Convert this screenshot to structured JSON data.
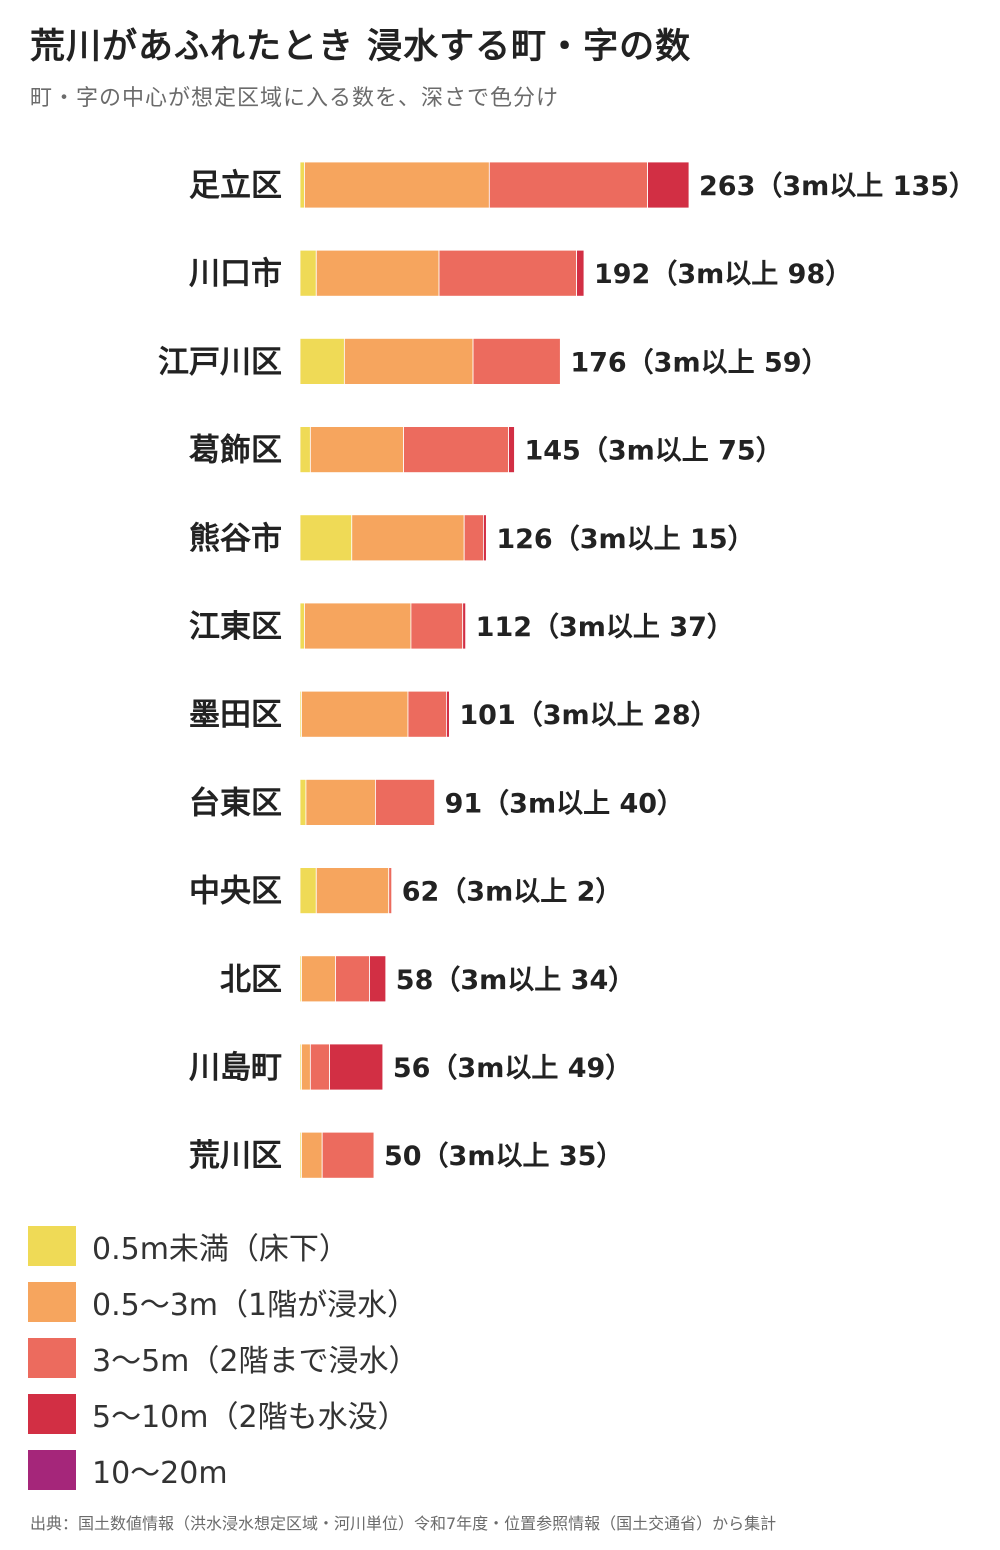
{
  "title": "荒川があふれたとき 浸水する町・字の数",
  "subtitle": "町・字の中心が想定区域に入る数を、深さで色分け",
  "source": "出典：国土数値情報（洪水浸水想定区域・河川単位）令和7年度・位置参照情報（国土交通省）から集計",
  "chart_data": {
    "type": "bar",
    "orientation": "horizontal",
    "stacked": true,
    "categories": [
      "足立区",
      "川口市",
      "江戸川区",
      "葛飾区",
      "熊谷市",
      "江東区",
      "墨田区",
      "台東区",
      "中央区",
      "北区",
      "川島町",
      "荒川区"
    ],
    "totals": [
      263,
      192,
      176,
      145,
      126,
      112,
      101,
      91,
      62,
      58,
      56,
      50
    ],
    "total_labels": [
      "263（3m以上 135）",
      "192（3m以上 98）",
      "176（3m以上 59）",
      "145（3m以上 75）",
      "126（3m以上 15）",
      "112（3m以上 37）",
      "101（3m以上 28）",
      "91（3m以上 40）",
      "62（3m以上 2）",
      "58（3m以上 34）",
      "56（3m以上 49）",
      "50（3m以上 35）"
    ],
    "series": [
      {
        "name": "0.5m未満（床下）",
        "color": "#EFDA56",
        "values": [
          3,
          11,
          30,
          7,
          35,
          3,
          1,
          4,
          11,
          1,
          1,
          1
        ]
      },
      {
        "name": "0.5〜3m（1階が浸水）",
        "color": "#F6A55E",
        "values": [
          125,
          83,
          87,
          63,
          76,
          72,
          72,
          47,
          49,
          23,
          6,
          14
        ]
      },
      {
        "name": "3〜5m（2階まで浸水）",
        "color": "#EC6B5E",
        "values": [
          107,
          93,
          59,
          71,
          13,
          35,
          26,
          40,
          2,
          23,
          13,
          35
        ]
      },
      {
        "name": "5〜10m（2階も水没）",
        "color": "#D22F44",
        "values": [
          28,
          5,
          0,
          4,
          2,
          2,
          2,
          0,
          0,
          11,
          36,
          0
        ]
      },
      {
        "name": "10〜20m",
        "color": "#A5267A",
        "values": [
          0,
          0,
          0,
          0,
          0,
          0,
          0,
          0,
          0,
          0,
          0,
          0
        ]
      }
    ]
  }
}
